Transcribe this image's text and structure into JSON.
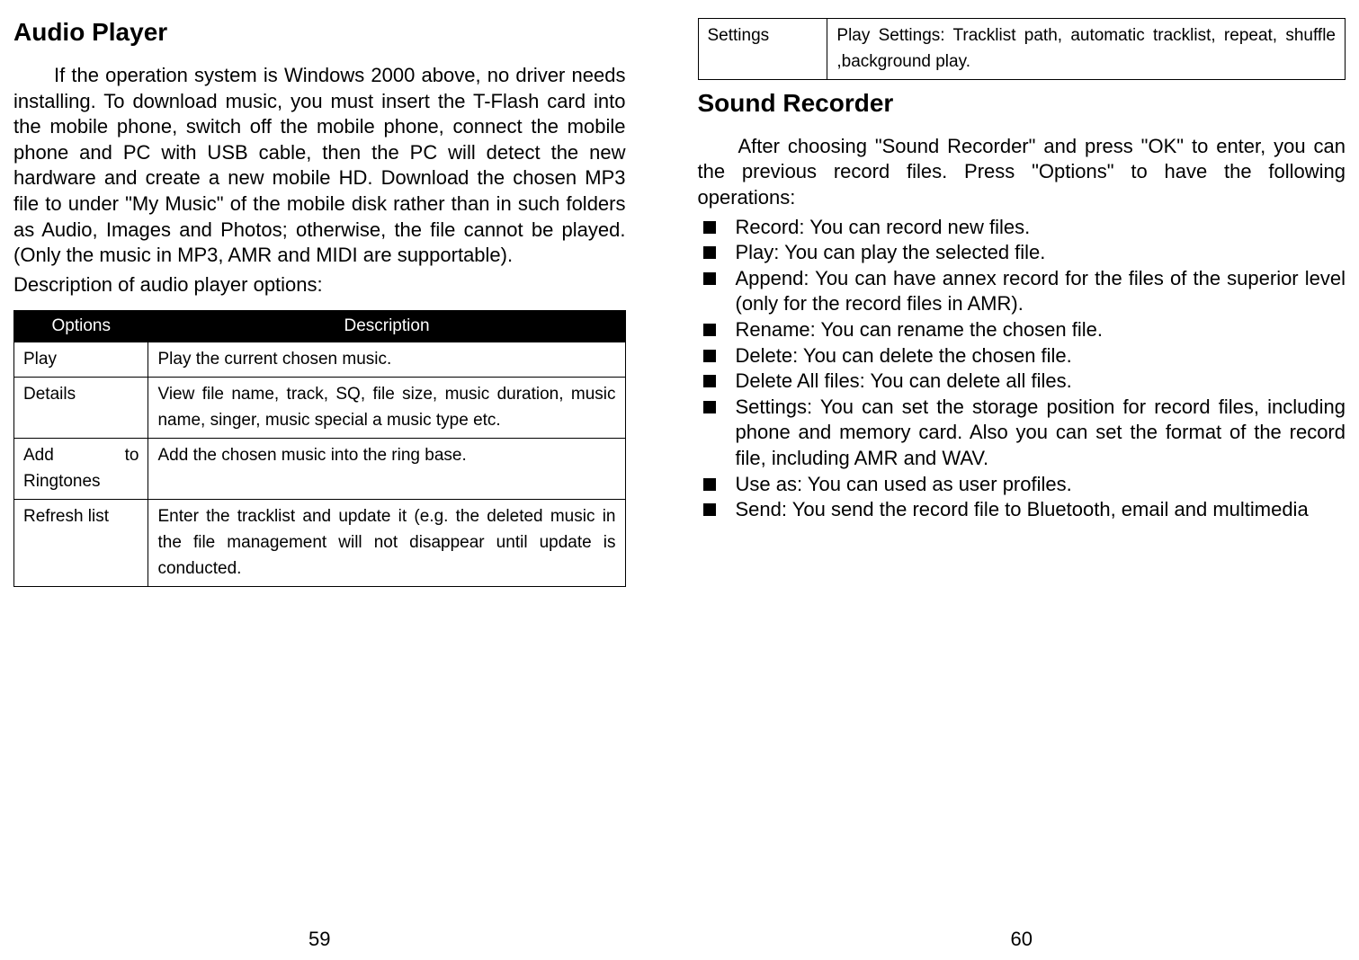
{
  "left": {
    "heading": "Audio Player",
    "paragraph": "If the operation system is Windows 2000 above, no driver needs installing. To download music, you must insert the T-Flash card into the mobile phone, switch off the mobile phone, connect the mobile phone and PC with USB cable, then the PC will detect the new hardware and create a new mobile HD. Download the chosen MP3 file to under \"My Music\" of the mobile disk rather than in such folders as Audio, Images and Photos; otherwise, the file cannot be played. (Only the music in MP3, AMR and MIDI are supportable).",
    "subtext": "Description of audio player options:",
    "table": {
      "headers": [
        "Options",
        "Description"
      ],
      "rows": [
        [
          "Play",
          "Play the current chosen music."
        ],
        [
          "Details",
          "View file name, track, SQ, file size, music duration, music name, singer, music special a music type etc."
        ],
        [
          "Add to Ringtones",
          "Add the chosen music into the ring base."
        ],
        [
          "Refresh list",
          "Enter the tracklist and update it (e.g. the deleted music in the file management will not disappear until update is conducted."
        ]
      ]
    },
    "pageNumber": "59"
  },
  "right": {
    "topTable": {
      "row": [
        "Settings",
        "Play Settings: Tracklist path, automatic tracklist, repeat, shuffle ,background play."
      ]
    },
    "heading": "Sound Recorder",
    "paragraph": "After choosing \"Sound Recorder\" and press \"OK\" to enter, you can the previous record files. Press \"Options\" to have the following operations:",
    "bullets": [
      "Record: You can record new files.",
      "Play: You can play the selected file.",
      "Append: You can have annex record for the files of the superior level (only for the record files in AMR).",
      "Rename: You can rename the chosen file.",
      "Delete: You can delete the chosen file.",
      "Delete All files: You can delete all files.",
      "Settings: You can set the storage position for record files, including phone and memory card. Also you can set the format of the record file, including AMR and WAV.",
      "Use as: You can used as user profiles.",
      "Send: You send the record file to Bluetooth, email and multimedia"
    ],
    "pageNumber": "60"
  }
}
